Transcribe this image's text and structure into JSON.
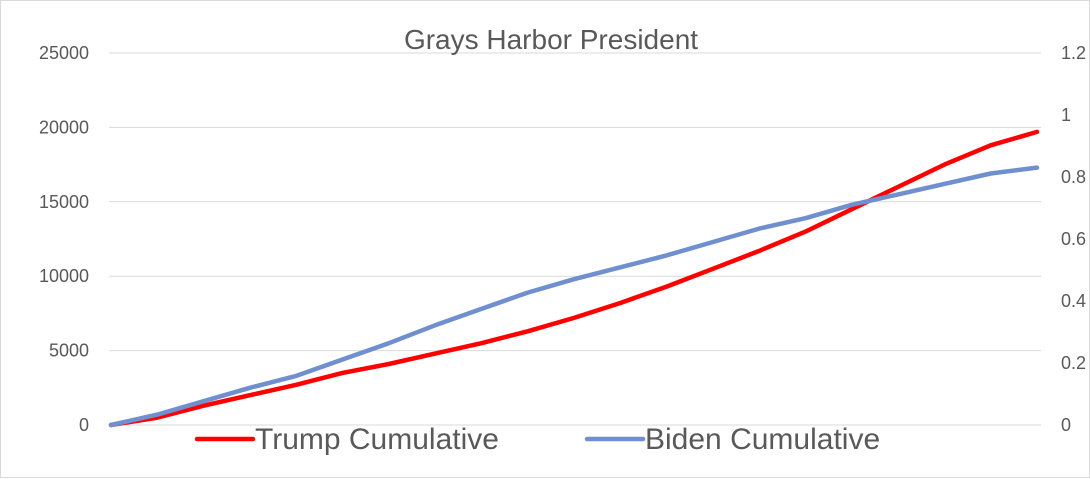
{
  "chart_data": {
    "type": "line",
    "title": "Grays Harbor President",
    "xlabel": "",
    "ylabel": "",
    "ylim": [
      0,
      25000
    ],
    "y_ticks": [
      "0",
      "5000",
      "10000",
      "15000",
      "20000",
      "25000"
    ],
    "y2lim": [
      0,
      1.2
    ],
    "y2_ticks": [
      "0",
      "0.2",
      "0.4",
      "0.6",
      "0.8",
      "1",
      "1.2"
    ],
    "grid": true,
    "legend_position": "bottom",
    "x": [
      0,
      0.05,
      0.1,
      0.15,
      0.2,
      0.25,
      0.3,
      0.35,
      0.4,
      0.45,
      0.5,
      0.55,
      0.6,
      0.65,
      0.7,
      0.75,
      0.8,
      0.85,
      0.9,
      0.95,
      1.0
    ],
    "series": [
      {
        "name": "Trump Cumulative",
        "color": "#ff0000",
        "values": [
          0,
          500,
          1300,
          2000,
          2700,
          3500,
          4100,
          4800,
          5500,
          6300,
          7200,
          8200,
          9300,
          10500,
          11700,
          13000,
          14500,
          16000,
          17500,
          18800,
          19700
        ]
      },
      {
        "name": "Biden Cumulative",
        "color": "#6f8fcf",
        "values": [
          0,
          700,
          1600,
          2500,
          3300,
          4400,
          5500,
          6700,
          7800,
          8900,
          9800,
          10600,
          11400,
          12300,
          13200,
          13900,
          14800,
          15500,
          16200,
          16900,
          17300
        ]
      }
    ]
  }
}
